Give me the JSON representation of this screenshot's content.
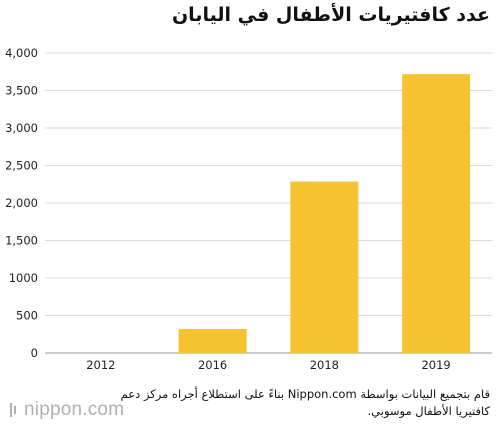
{
  "chart_data": {
    "type": "bar",
    "title": "عدد كافتيريات الأطفال في اليابان",
    "categories": [
      "2012",
      "2016",
      "2018",
      "2019"
    ],
    "values": [
      0,
      319,
      2286,
      3718
    ],
    "ylim": [
      0,
      4000
    ],
    "yticks": [
      0,
      500,
      1000,
      1500,
      2000,
      2500,
      3000,
      3500,
      4000
    ],
    "ytick_labels": [
      "0",
      "500",
      "1000",
      "1,500",
      "2,000",
      "2,500",
      "3,000",
      "3,500",
      "4,000"
    ],
    "xlabel": "",
    "ylabel": "",
    "grid": true,
    "bar_color": "#f7c230",
    "grid_color": "#d9d9d9"
  },
  "footnote": "قام بتجميع البيانات بواسطة Nippon.com بناءً على استطلاع أجراه مركز دعم كافتيريا الأطفال موسوبي.",
  "logo": {
    "text": "nippon.com",
    "color": "#b0b0b0"
  }
}
